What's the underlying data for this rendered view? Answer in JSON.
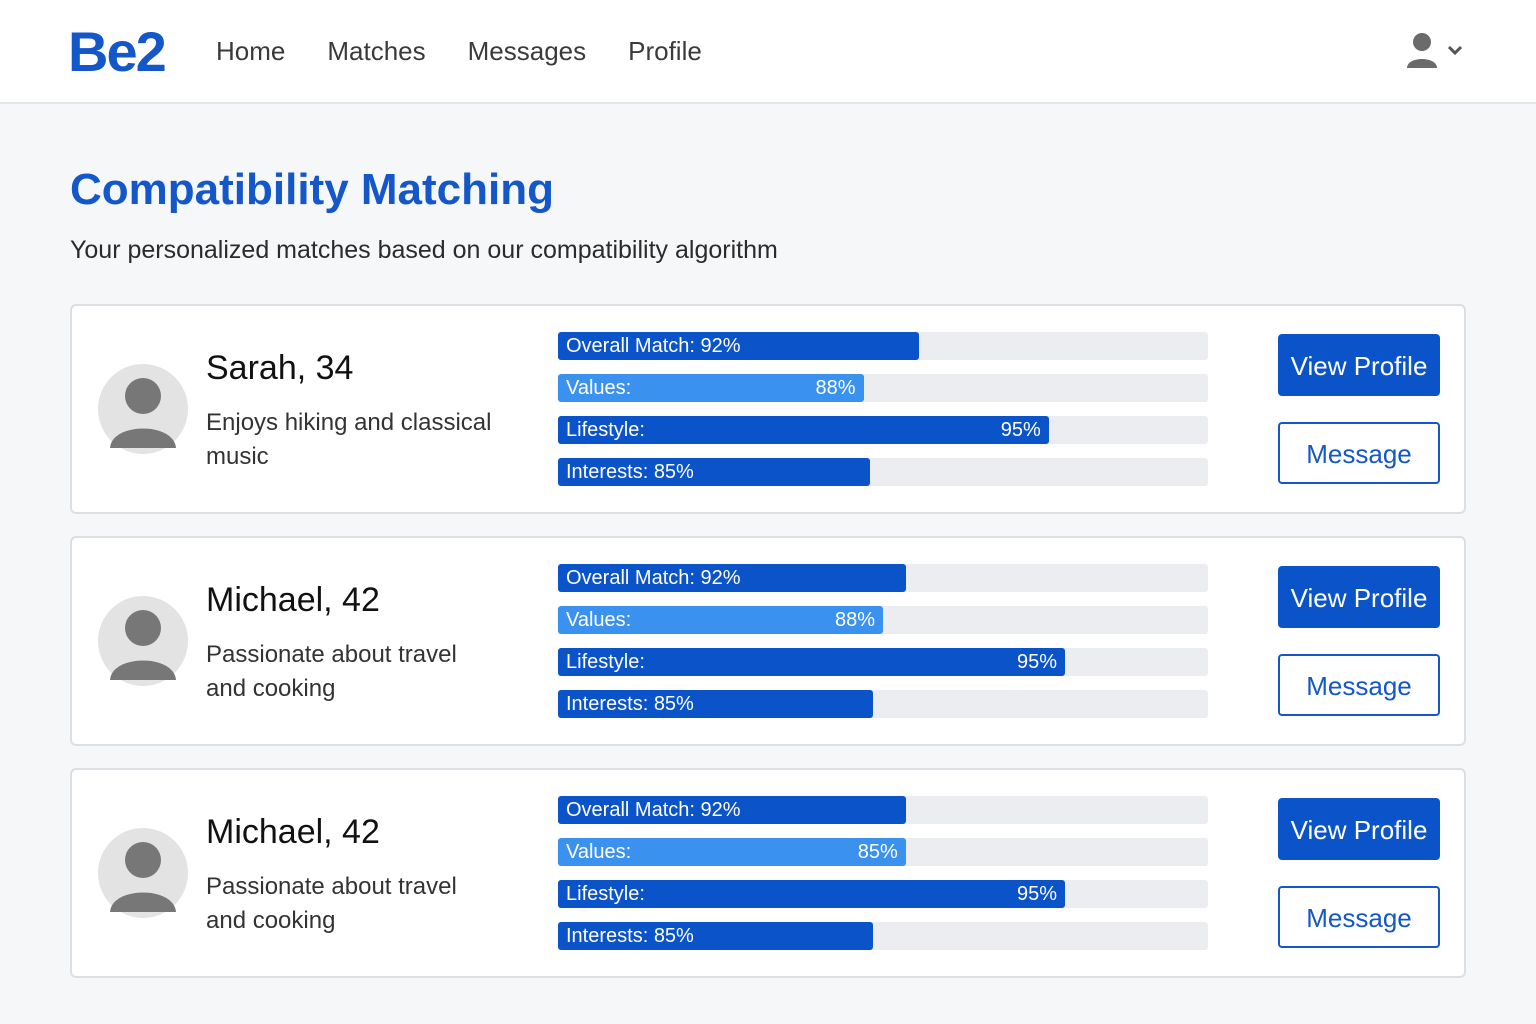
{
  "app": {
    "logo": "Be2"
  },
  "nav": {
    "items": [
      {
        "label": "Home"
      },
      {
        "label": "Matches"
      },
      {
        "label": "Messages"
      },
      {
        "label": "Profile"
      }
    ],
    "user_icon": "user-icon",
    "dropdown_icon": "chevron-down-icon"
  },
  "page": {
    "title": "Compatibility Matching",
    "subtitle": "Your personalized matches based on our compatibility algorithm"
  },
  "colors": {
    "brand": "#1457c9",
    "bar_dark": "#0a53c8",
    "bar_light": "#3b92ee",
    "track": "#ebedf0"
  },
  "matches": [
    {
      "name": "Sarah, 34",
      "bio": "Enjoys hiking and classical music",
      "bars": [
        {
          "label": "Overall Match: 92%",
          "value_text": "",
          "fill_percent": 55.5,
          "style": "dark"
        },
        {
          "label": "Values:",
          "value_text": "88%",
          "fill_percent": 47,
          "style": "light"
        },
        {
          "label": "Lifestyle:",
          "value_text": "95%",
          "fill_percent": 75.5,
          "style": "dark"
        },
        {
          "label": "Interests: 85%",
          "value_text": "",
          "fill_percent": 48,
          "style": "dark"
        }
      ],
      "view_profile_label": "View Profile",
      "message_label": "Message"
    },
    {
      "name": "Michael, 42",
      "bio": "Passionate about travel and cooking",
      "bars": [
        {
          "label": "Overall Match: 92%",
          "value_text": "",
          "fill_percent": 53.5,
          "style": "dark"
        },
        {
          "label": "Values:",
          "value_text": "88%",
          "fill_percent": 50,
          "style": "light"
        },
        {
          "label": "Lifestyle:",
          "value_text": "95%",
          "fill_percent": 78,
          "style": "dark"
        },
        {
          "label": "Interests: 85%",
          "value_text": "",
          "fill_percent": 48.5,
          "style": "dark"
        }
      ],
      "view_profile_label": "View Profile",
      "message_label": "Message"
    },
    {
      "name": "Michael, 42",
      "bio": "Passionate about travel and cooking",
      "bars": [
        {
          "label": "Overall Match: 92%",
          "value_text": "",
          "fill_percent": 53.5,
          "style": "dark"
        },
        {
          "label": "Values:",
          "value_text": "85%",
          "fill_percent": 53.5,
          "style": "light"
        },
        {
          "label": "Lifestyle:",
          "value_text": "95%",
          "fill_percent": 78,
          "style": "dark"
        },
        {
          "label": "Interests: 85%",
          "value_text": "",
          "fill_percent": 48.5,
          "style": "dark"
        }
      ],
      "view_profile_label": "View Profile",
      "message_label": "Message"
    }
  ]
}
